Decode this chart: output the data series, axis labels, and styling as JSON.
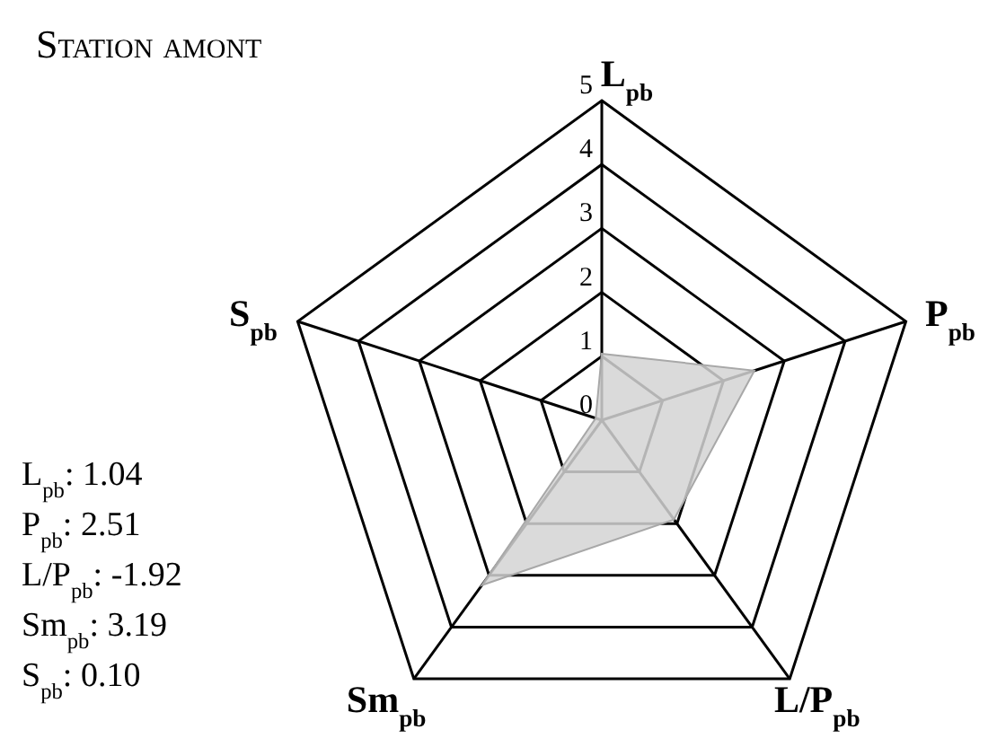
{
  "chart_data": {
    "type": "radar",
    "title": "Station amont",
    "categories": [
      "L$_{pb}$",
      "P$_{pb}$",
      "L/P$_{pb}$",
      "Sm$_{pb}$",
      "S$_{pb}$"
    ],
    "series": [
      {
        "color": "#d3d3d3",
        "values": [
          1.04,
          2.51,
          1.92,
          3.19,
          0.1
        ]
      }
    ],
    "ylim": [
      0,
      5
    ],
    "yticks": [
      0,
      1,
      2,
      3,
      4,
      5
    ],
    "grid": true,
    "annotations": [
      "L$_{pb}$: 1.04",
      "P$_{pb}$: 2.51",
      "L/P$_{pb}$: -1.92",
      "Sm$_{pb}$: 3.19",
      "S$_{pb}$: 0.10"
    ]
  }
}
